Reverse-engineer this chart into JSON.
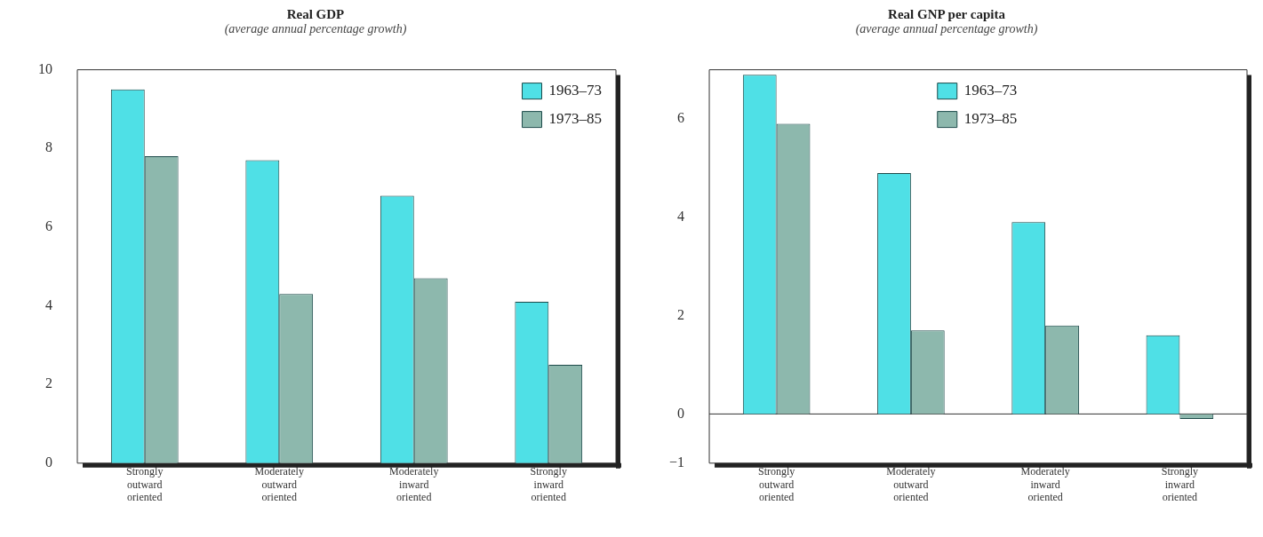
{
  "chart_data": [
    {
      "type": "bar",
      "title": "Real GDP",
      "subtitle": "(average annual percentage growth)",
      "categories": [
        "Strongly outward oriented",
        "Moderately outward oriented",
        "Moderately inward oriented",
        "Strongly inward oriented"
      ],
      "series": [
        {
          "name": "1963–73",
          "color": "#4fe0e6",
          "values": [
            9.5,
            7.7,
            6.8,
            4.1
          ]
        },
        {
          "name": "1973–85",
          "color": "#8db8ad",
          "values": [
            7.8,
            4.3,
            4.7,
            2.5
          ]
        }
      ],
      "ylim": [
        0,
        10
      ],
      "yticks": [
        0,
        2,
        4,
        6,
        8,
        10
      ],
      "grid": false,
      "legend": "top right"
    },
    {
      "type": "bar",
      "title": "Real GNP per capita",
      "subtitle": "(average annual percentage growth)",
      "categories": [
        "Strongly outward oriented",
        "Moderately outward oriented",
        "Moderately inward oriented",
        "Strongly inward oriented"
      ],
      "series": [
        {
          "name": "1963–73",
          "color": "#4fe0e6",
          "values": [
            6.9,
            4.9,
            3.9,
            1.6
          ]
        },
        {
          "name": "1973–85",
          "color": "#8db8ad",
          "values": [
            5.9,
            1.7,
            1.8,
            -0.1
          ]
        }
      ],
      "ylim": [
        -1,
        7
      ],
      "yticks": [
        {
          "value": -1,
          "label": "−1"
        },
        0,
        2,
        4,
        6
      ],
      "grid": false,
      "legend": "top",
      "ref_lines": [
        {
          "axis": "y",
          "value": 0
        }
      ]
    }
  ]
}
